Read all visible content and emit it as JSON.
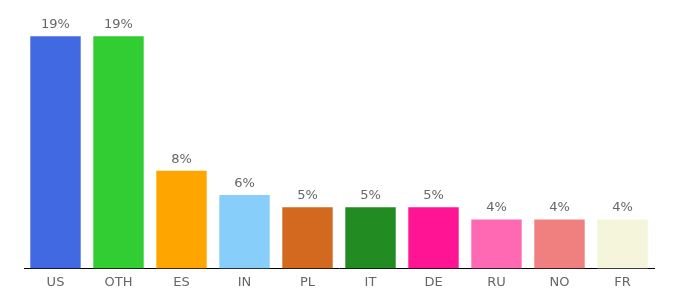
{
  "chart_data": {
    "type": "bar",
    "categories": [
      "US",
      "OTH",
      "ES",
      "IN",
      "PL",
      "IT",
      "DE",
      "RU",
      "NO",
      "FR"
    ],
    "values": [
      19,
      19,
      8,
      6,
      5,
      5,
      5,
      4,
      4,
      4
    ],
    "value_labels": [
      "19%",
      "19%",
      "8%",
      "6%",
      "5%",
      "5%",
      "5%",
      "4%",
      "4%",
      "4%"
    ],
    "colors": [
      "#4169e1",
      "#32cd32",
      "#ffa500",
      "#87cefa",
      "#d2691e",
      "#228b22",
      "#ff1493",
      "#ff69b4",
      "#f08080",
      "#f5f5dc"
    ],
    "ylim": [
      0,
      20
    ],
    "grid": false,
    "data_labels": true,
    "tick_labels": "x"
  }
}
